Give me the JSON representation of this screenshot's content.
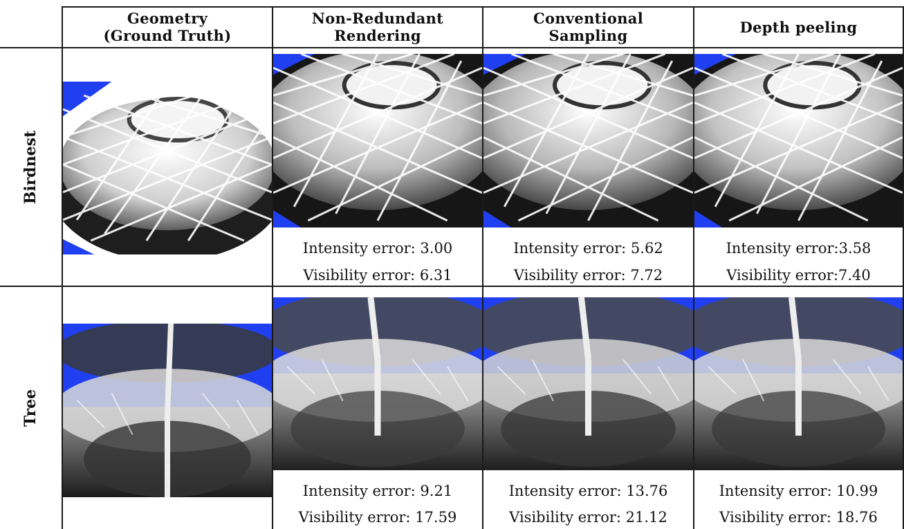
{
  "headers": [
    {
      "line1": "Geometry",
      "line2": "(Ground Truth)"
    },
    {
      "line1": "Non-Redundant",
      "line2": "Rendering"
    },
    {
      "line1": "Conventional",
      "line2": "Sampling"
    },
    {
      "line1": "Depth peeling",
      "line2": ""
    }
  ],
  "rows": [
    {
      "label": "Birdnest",
      "errors": [
        {
          "intensity": "Intensity error: 3.00",
          "visibility": "Visibility error: 6.31"
        },
        {
          "intensity": "Intensity error: 5.62",
          "visibility": "Visibility error: 7.72"
        },
        {
          "intensity": "Intensity error:3.58",
          "visibility": "Visibility error:7.40"
        }
      ]
    },
    {
      "label": "Tree",
      "errors": [
        {
          "intensity": "Intensity error: 9.21",
          "visibility": "Visibility error: 17.59"
        },
        {
          "intensity": "Intensity error: 13.76",
          "visibility": "Visibility error: 21.12"
        },
        {
          "intensity": "Intensity error: 10.99",
          "visibility": "Visibility error: 18.76"
        }
      ]
    }
  ],
  "colors": {
    "sky_blue": "#1f3ff0",
    "grid_line": "#1a1a1a"
  }
}
